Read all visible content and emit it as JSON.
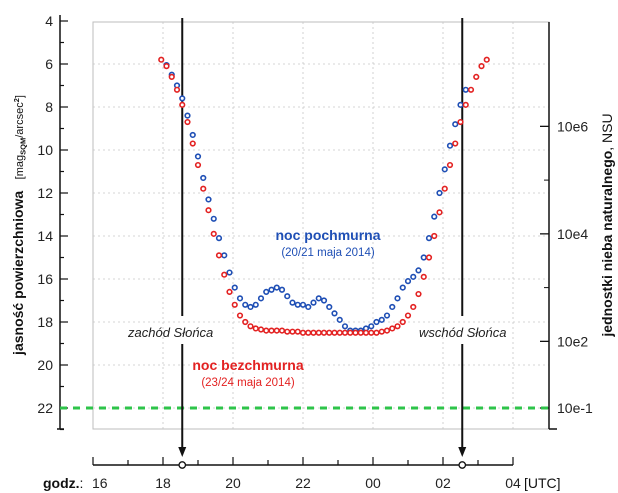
{
  "chart_data": {
    "type": "scatter",
    "title": "",
    "ylabel_left": {
      "main": "jasność powierzchniowa",
      "unit_open": "[mag",
      "unit_sub": "SQM",
      "unit_mid": "/arcsec",
      "unit_sup": "2",
      "unit_close": "]"
    },
    "ylabel_right": {
      "main": "jednostki nieba naturalnego",
      "sep": ", ",
      "unit": "NSU"
    },
    "xlabel": {
      "prefix": "godz.",
      "sep": ":",
      "suffix": "[UTC]"
    },
    "y_left": {
      "min": 4,
      "max": 22,
      "ticks": [
        "4",
        "6",
        "8",
        "10",
        "12",
        "14",
        "16",
        "18",
        "20",
        "22"
      ],
      "inverted": true,
      "minor_step": 1
    },
    "y_right": {
      "ticks": [
        {
          "label": "10e6",
          "at_mag": 8.9
        },
        {
          "label": "10e4",
          "at_mag": 13.9
        },
        {
          "label": "10e2",
          "at_mag": 18.9
        },
        {
          "label": "10e-1",
          "at_mag": 22.0
        }
      ]
    },
    "x_time": {
      "ticks": [
        "16",
        "18",
        "20",
        "22",
        "00",
        "02",
        "04"
      ],
      "hours_from_16": [
        0,
        2,
        4,
        6,
        8,
        10,
        12
      ]
    },
    "grid": true,
    "reference_line": {
      "mag": 22.0,
      "color": "#2ec44a",
      "style": "dashed"
    },
    "events": [
      {
        "label": "zachód Słońca",
        "hours_from_16": 2.55
      },
      {
        "label": "wschód Słońca",
        "hours_from_16": 10.55
      }
    ],
    "series": [
      {
        "name": "noc pochmurna",
        "subtitle": "(20/21 maja 2014)",
        "color": "#1f4fb5",
        "points": [
          [
            2.1,
            6.05
          ],
          [
            2.25,
            6.5
          ],
          [
            2.4,
            7.0
          ],
          [
            2.55,
            7.6
          ],
          [
            2.7,
            8.4
          ],
          [
            2.85,
            9.3
          ],
          [
            3.0,
            10.3
          ],
          [
            3.15,
            11.3
          ],
          [
            3.3,
            12.3
          ],
          [
            3.45,
            13.2
          ],
          [
            3.6,
            14.1
          ],
          [
            3.75,
            14.9
          ],
          [
            3.9,
            15.7
          ],
          [
            4.05,
            16.4
          ],
          [
            4.2,
            16.9
          ],
          [
            4.35,
            17.2
          ],
          [
            4.5,
            17.3
          ],
          [
            4.65,
            17.2
          ],
          [
            4.8,
            16.9
          ],
          [
            4.95,
            16.6
          ],
          [
            5.1,
            16.5
          ],
          [
            5.25,
            16.4
          ],
          [
            5.4,
            16.5
          ],
          [
            5.55,
            16.8
          ],
          [
            5.7,
            17.1
          ],
          [
            5.85,
            17.2
          ],
          [
            6.0,
            17.2
          ],
          [
            6.15,
            17.3
          ],
          [
            6.3,
            17.1
          ],
          [
            6.45,
            16.9
          ],
          [
            6.6,
            17.0
          ],
          [
            6.75,
            17.3
          ],
          [
            6.9,
            17.6
          ],
          [
            7.05,
            17.9
          ],
          [
            7.2,
            18.2
          ],
          [
            7.35,
            18.4
          ],
          [
            7.5,
            18.4
          ],
          [
            7.65,
            18.4
          ],
          [
            7.8,
            18.3
          ],
          [
            7.95,
            18.2
          ],
          [
            8.1,
            18.0
          ],
          [
            8.25,
            17.9
          ],
          [
            8.4,
            17.7
          ],
          [
            8.55,
            17.3
          ],
          [
            8.7,
            16.9
          ],
          [
            8.85,
            16.4
          ],
          [
            9.0,
            16.1
          ],
          [
            9.15,
            15.9
          ],
          [
            9.3,
            15.6
          ],
          [
            9.45,
            15.0
          ],
          [
            9.6,
            14.1
          ],
          [
            9.75,
            13.1
          ],
          [
            9.9,
            12.0
          ],
          [
            10.05,
            10.9
          ],
          [
            10.2,
            9.8
          ],
          [
            10.35,
            8.8
          ],
          [
            10.5,
            7.9
          ],
          [
            10.65,
            7.2
          ]
        ]
      },
      {
        "name": "noc bezchmurna",
        "subtitle": "(23/24 maja 2014)",
        "color": "#e32222",
        "points": [
          [
            1.95,
            5.8
          ],
          [
            2.1,
            6.1
          ],
          [
            2.25,
            6.6
          ],
          [
            2.4,
            7.2
          ],
          [
            2.55,
            7.9
          ],
          [
            2.7,
            8.7
          ],
          [
            2.85,
            9.7
          ],
          [
            3.0,
            10.7
          ],
          [
            3.15,
            11.8
          ],
          [
            3.3,
            12.8
          ],
          [
            3.45,
            13.9
          ],
          [
            3.6,
            14.9
          ],
          [
            3.75,
            15.8
          ],
          [
            3.9,
            16.6
          ],
          [
            4.05,
            17.2
          ],
          [
            4.2,
            17.7
          ],
          [
            4.35,
            18.0
          ],
          [
            4.5,
            18.2
          ],
          [
            4.65,
            18.3
          ],
          [
            4.8,
            18.35
          ],
          [
            4.95,
            18.4
          ],
          [
            5.1,
            18.4
          ],
          [
            5.25,
            18.4
          ],
          [
            5.4,
            18.4
          ],
          [
            5.55,
            18.45
          ],
          [
            5.7,
            18.45
          ],
          [
            5.85,
            18.45
          ],
          [
            6.0,
            18.5
          ],
          [
            6.15,
            18.5
          ],
          [
            6.3,
            18.5
          ],
          [
            6.45,
            18.5
          ],
          [
            6.6,
            18.5
          ],
          [
            6.75,
            18.5
          ],
          [
            6.9,
            18.5
          ],
          [
            7.05,
            18.5
          ],
          [
            7.2,
            18.5
          ],
          [
            7.35,
            18.5
          ],
          [
            7.5,
            18.5
          ],
          [
            7.65,
            18.5
          ],
          [
            7.8,
            18.5
          ],
          [
            7.95,
            18.5
          ],
          [
            8.1,
            18.5
          ],
          [
            8.25,
            18.45
          ],
          [
            8.4,
            18.4
          ],
          [
            8.55,
            18.3
          ],
          [
            8.7,
            18.2
          ],
          [
            8.85,
            18.0
          ],
          [
            9.0,
            17.7
          ],
          [
            9.15,
            17.3
          ],
          [
            9.3,
            16.7
          ],
          [
            9.45,
            15.9
          ],
          [
            9.6,
            15.0
          ],
          [
            9.75,
            14.0
          ],
          [
            9.9,
            12.9
          ],
          [
            10.05,
            11.8
          ],
          [
            10.2,
            10.7
          ],
          [
            10.35,
            9.7
          ],
          [
            10.5,
            8.7
          ],
          [
            10.65,
            7.9
          ],
          [
            10.8,
            7.2
          ],
          [
            10.95,
            6.6
          ],
          [
            11.1,
            6.1
          ],
          [
            11.25,
            5.8
          ]
        ]
      }
    ]
  }
}
